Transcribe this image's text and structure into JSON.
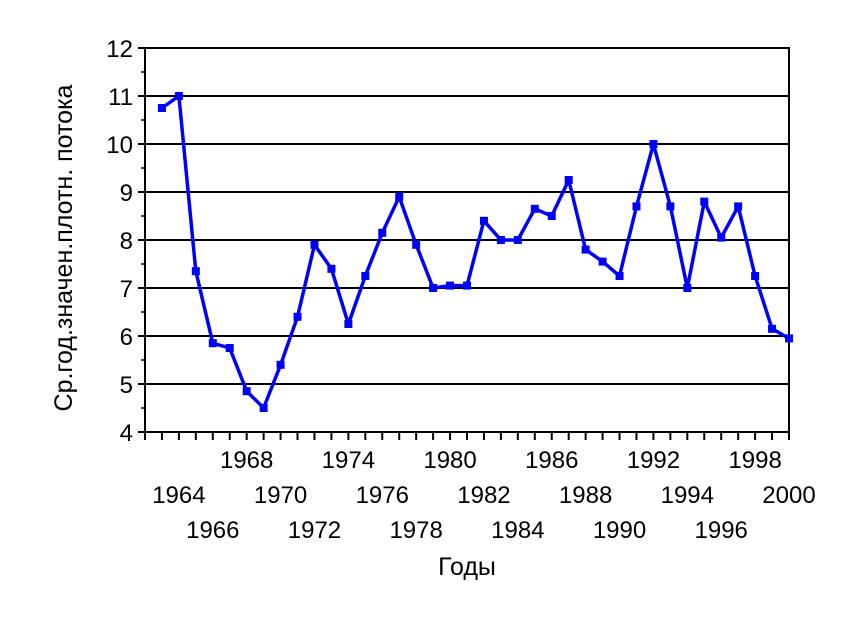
{
  "chart_data": {
    "type": "line",
    "xlabel": "Годы",
    "ylabel": "Ср.год.значен.плотн. потока",
    "ylim": [
      4,
      12
    ],
    "yticks": [
      "4",
      "5",
      "6",
      "7",
      "8",
      "9",
      "10",
      "11",
      "12"
    ],
    "xlim": [
      1962,
      2000
    ],
    "xticks_row1": [
      "1968",
      "1974",
      "1980",
      "1986",
      "1992",
      "1998"
    ],
    "xticks_row2": [
      "1964",
      "1970",
      "1976",
      "1982",
      "1988",
      "1994",
      "2000"
    ],
    "xticks_row3": [
      "1966",
      "1972",
      "1978",
      "1984",
      "1990",
      "1996"
    ],
    "grid": "horizontal",
    "line_color": "#0000ff",
    "series": [
      {
        "x": [
          1963,
          1964,
          1965,
          1966,
          1967,
          1968,
          1969,
          1970,
          1971,
          1972,
          1973,
          1974,
          1975,
          1976,
          1977,
          1978,
          1979,
          1980,
          1981,
          1982,
          1983,
          1984,
          1985,
          1986,
          1987,
          1988,
          1989,
          1990,
          1991,
          1992,
          1993,
          1994,
          1995,
          1996,
          1997,
          1998,
          1999,
          2000
        ],
        "values": [
          10.75,
          11.0,
          7.35,
          5.85,
          5.75,
          4.85,
          4.5,
          5.4,
          6.4,
          7.9,
          7.4,
          6.25,
          7.25,
          8.15,
          8.9,
          7.9,
          7.0,
          7.05,
          7.05,
          8.4,
          8.0,
          8.0,
          8.65,
          8.5,
          9.25,
          7.8,
          7.55,
          7.25,
          8.7,
          10.0,
          8.7,
          7.0,
          8.8,
          8.05,
          8.7,
          7.25,
          6.15,
          5.95
        ]
      }
    ]
  }
}
